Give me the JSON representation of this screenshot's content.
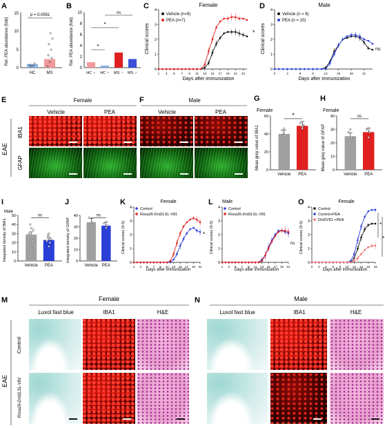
{
  "panels": {
    "A": {
      "letter": "A",
      "ylabel": "Rel. PEA abundance (fold)",
      "pval": "p = 0.0561",
      "cat1": "HC",
      "cat2": "MS",
      "ticks": [
        "0",
        "5",
        "10",
        "15"
      ]
    },
    "B": {
      "letter": "B",
      "ylabel": "Rel. PEA abundance (fold)",
      "ticks": [
        "0",
        "2",
        "4",
        "6",
        "8",
        "10"
      ],
      "cats": [
        "HC ♀",
        "HC ♂",
        "MS ♀",
        "MS ♂"
      ],
      "sig1": "*",
      "sig2": "*",
      "ns": "ns"
    },
    "C": {
      "letter": "C",
      "title": "Female",
      "ylabel": "Clinical scores",
      "xlabel": "Days after immunization",
      "legend": [
        "Vehicle (n=9)",
        "PEA (n=7)"
      ],
      "sig": "*",
      "yticks": [
        "0",
        "1",
        "2",
        "3",
        "4"
      ],
      "xticks": [
        "1",
        "3",
        "5",
        "7",
        "9",
        "11",
        "13",
        "15",
        "17",
        "19",
        "21",
        "23"
      ]
    },
    "D": {
      "letter": "D",
      "title": "Male",
      "ylabel": "Clinical scores",
      "xlabel": "Days after immunization",
      "legend": [
        "Vehicle (n = 8)",
        "PEA (n = 10)"
      ],
      "sig": "ns",
      "yticks": [
        "0",
        "1",
        "2",
        "3",
        "4"
      ],
      "xticks": [
        "0",
        "3",
        "6",
        "9",
        "12",
        "15",
        "18",
        "21"
      ]
    },
    "E": {
      "letter": "E",
      "title": "Female",
      "col1": "Vehicle",
      "col2": "PEA",
      "row1": "IBA1",
      "row2": "GFAP",
      "side": "EAE"
    },
    "F": {
      "letter": "F",
      "title": "Male",
      "col1": "Vehicle",
      "col2": "PEA"
    },
    "G": {
      "letter": "G",
      "title": "Female",
      "ylabel": "Mean grey value of IBA1",
      "cats": [
        "Vehicle",
        "PEA"
      ],
      "sig": "*",
      "yticks": [
        "0",
        "20",
        "40",
        "60"
      ]
    },
    "H": {
      "letter": "H",
      "title": "Female",
      "ylabel": "Mean grey value of GFAP",
      "cats": [
        "Vehicle",
        "PEA"
      ],
      "sig": "ns",
      "yticks": [
        "0",
        "10",
        "20",
        "30",
        "40"
      ]
    },
    "I": {
      "letter": "I",
      "title": "Male",
      "ylabel": "Integrated density of IBA1",
      "cats": [
        "Vehicle",
        "PEA"
      ],
      "sig": "ns",
      "yticks": [
        "0",
        "10",
        "20",
        "30",
        "40",
        "50"
      ]
    },
    "J": {
      "letter": "J",
      "title": "Male",
      "ylabel": "Integrated density of GFAP",
      "cats": [
        "Vehicle",
        "PEA"
      ],
      "sig": "ns",
      "yticks": [
        "0",
        "10",
        "20",
        "30",
        "40"
      ]
    },
    "K": {
      "letter": "K",
      "title": "Female",
      "ylabel": "Clinical scores (0-5)",
      "xlabel": "Days after immunization",
      "legend": [
        "Control",
        "Rosa26-Drd2LSL-V81"
      ],
      "sig": "*",
      "yticks": [
        "0",
        "1",
        "2",
        "3",
        "4"
      ],
      "xticks": [
        "1",
        "3",
        "5",
        "7",
        "9",
        "11",
        "13",
        "15",
        "17",
        "19",
        "21"
      ]
    },
    "L": {
      "letter": "L",
      "title": "Male",
      "ylabel": "Clinical scores (0-5)",
      "xlabel": "Days after immunization",
      "legend": [
        "Control",
        "Rosa26-Drd2LSL-V81"
      ],
      "sig": "ns",
      "yticks": [
        "0",
        "1",
        "2",
        "3",
        "4"
      ],
      "xticks": [
        "1",
        "3",
        "5",
        "7",
        "9",
        "11",
        "13",
        "15",
        "17",
        "19",
        "21"
      ]
    },
    "O": {
      "letter": "O",
      "title": "Female",
      "ylabel": "Clinical scores (0-5)",
      "xlabel": "Days after immunization",
      "legend": [
        "Control",
        "Control+PEA",
        "Drd2V81 +PEA"
      ],
      "sig1": "*",
      "sig2": "*",
      "yticks": [
        "0",
        "1",
        "2",
        "3",
        "4"
      ],
      "xticks": [
        "0",
        "2",
        "4",
        "6",
        "8",
        "10",
        "12",
        "14",
        "16",
        "18"
      ]
    },
    "M": {
      "letter": "M",
      "title": "Female",
      "cols": [
        "Luxol fast blue",
        "IBA1",
        "H&E"
      ],
      "row1": "Control",
      "row2": "Rosa26-Drd2LSL-V81",
      "side": "EAE"
    },
    "N": {
      "letter": "N",
      "title": "Male",
      "cols": [
        "Luxol fast blue",
        "IBA1",
        "H&E"
      ]
    }
  },
  "colors": {
    "black": "#111111",
    "red": "#e02020",
    "blue": "#2a3fd8",
    "gray": "#a0a0a0",
    "pink": "#f08a8a",
    "lightblue": "#8ab4e0",
    "salmon": "#f07070"
  },
  "chart_data": [
    {
      "type": "line",
      "id": "C",
      "title": "Female",
      "xlabel": "Days after immunization",
      "ylabel": "Clinical scores",
      "x": [
        1,
        2,
        3,
        4,
        5,
        6,
        7,
        8,
        9,
        10,
        11,
        12,
        13,
        14,
        15,
        16,
        17,
        18,
        19,
        20,
        21,
        22,
        23,
        24
      ],
      "series": [
        {
          "name": "Vehicle (n=9)",
          "values": [
            0,
            0,
            0,
            0,
            0,
            0,
            0,
            0,
            0,
            0,
            0,
            0,
            0.1,
            0.4,
            1.1,
            1.7,
            2.1,
            2.4,
            2.5,
            2.5,
            2.5,
            2.4,
            2.3,
            2.2
          ]
        },
        {
          "name": "PEA (n=7)",
          "values": [
            0,
            0,
            0,
            0,
            0,
            0,
            0,
            0,
            0,
            0,
            0,
            0,
            0.3,
            1.2,
            2.0,
            2.8,
            3.2,
            3.4,
            3.4,
            3.5,
            3.5,
            3.4,
            3.4,
            3.3
          ]
        }
      ],
      "ylim": [
        0,
        4
      ]
    },
    {
      "type": "line",
      "id": "D",
      "title": "Male",
      "xlabel": "Days after immunization",
      "ylabel": "Clinical scores",
      "x": [
        0,
        1,
        2,
        3,
        4,
        5,
        6,
        7,
        8,
        9,
        10,
        11,
        12,
        13,
        14,
        15,
        16,
        17,
        18,
        19,
        20,
        21,
        22,
        23
      ],
      "series": [
        {
          "name": "Vehicle (n = 8)",
          "values": [
            0,
            0,
            0,
            0,
            0,
            0,
            0,
            0,
            0,
            0,
            0,
            0,
            0.1,
            0.5,
            1.2,
            1.6,
            2.0,
            2.1,
            2.2,
            2.2,
            2.1,
            1.8,
            1.4,
            1.3
          ]
        },
        {
          "name": "PEA (n = 10)",
          "values": [
            0,
            0,
            0,
            0,
            0,
            0,
            0,
            0,
            0,
            0,
            0,
            0,
            0.0,
            0.4,
            1.0,
            1.6,
            2.0,
            2.2,
            2.3,
            2.3,
            2.2,
            2.0,
            1.9,
            1.7
          ]
        }
      ],
      "ylim": [
        0,
        4
      ]
    },
    {
      "type": "bar",
      "id": "A",
      "categories": [
        "HC",
        "MS"
      ],
      "values": [
        1.0,
        2.4
      ],
      "ylim": [
        0,
        15
      ]
    },
    {
      "type": "bar",
      "id": "B",
      "categories": [
        "HC ♀",
        "HC ♂",
        "MS ♀",
        "MS ♂"
      ],
      "values": [
        1.0,
        0.4,
        2.8,
        1.6
      ],
      "ylim": [
        0,
        10
      ]
    },
    {
      "type": "bar",
      "id": "G",
      "title": "Female",
      "categories": [
        "Vehicle",
        "PEA"
      ],
      "values": [
        40,
        49
      ],
      "ylim": [
        0,
        60
      ]
    },
    {
      "type": "bar",
      "id": "H",
      "title": "Female",
      "categories": [
        "Vehicle",
        "PEA"
      ],
      "values": [
        25,
        28
      ],
      "ylim": [
        0,
        40
      ]
    },
    {
      "type": "bar",
      "id": "I",
      "title": "Male",
      "categories": [
        "Vehicle",
        "PEA"
      ],
      "values": [
        29,
        23
      ],
      "ylim": [
        0,
        50
      ]
    },
    {
      "type": "bar",
      "id": "J",
      "title": "Male",
      "categories": [
        "Vehicle",
        "PEA"
      ],
      "values": [
        34,
        31
      ],
      "ylim": [
        0,
        40
      ]
    },
    {
      "type": "line",
      "id": "K",
      "title": "Female",
      "xlabel": "Days after immunization",
      "ylabel": "Clinical scores (0-5)",
      "x": [
        1,
        2,
        3,
        4,
        5,
        6,
        7,
        8,
        9,
        10,
        11,
        12,
        13,
        14,
        15,
        16,
        17,
        18,
        19,
        20,
        21
      ],
      "series": [
        {
          "name": "Control",
          "values": [
            0,
            0,
            0,
            0,
            0,
            0,
            0,
            0,
            0,
            0,
            0,
            0,
            0.2,
            0.6,
            1.2,
            1.7,
            2.1,
            2.4,
            2.5,
            2.3,
            2.2
          ]
        },
        {
          "name": "Rosa26-Drd2LSL-V81",
          "values": [
            0,
            0,
            0,
            0,
            0,
            0,
            0,
            0,
            0,
            0,
            0,
            0.1,
            0.6,
            1.4,
            2.1,
            2.6,
            2.9,
            3.1,
            3.2,
            3.1,
            2.9
          ]
        }
      ],
      "ylim": [
        0,
        4
      ]
    },
    {
      "type": "line",
      "id": "L",
      "title": "Male",
      "xlabel": "Days after immunization",
      "ylabel": "Clinical scores (0-5)",
      "x": [
        1,
        2,
        3,
        4,
        5,
        6,
        7,
        8,
        9,
        10,
        11,
        12,
        13,
        14,
        15,
        16,
        17,
        18,
        19,
        20,
        21
      ],
      "series": [
        {
          "name": "Control",
          "values": [
            0,
            0,
            0,
            0,
            0,
            0,
            0,
            0,
            0,
            0,
            0,
            0,
            0.2,
            0.5,
            1.1,
            1.6,
            2.0,
            2.3,
            2.3,
            2.2,
            2.1
          ]
        },
        {
          "name": "Rosa26-Drd2LSL-V81",
          "values": [
            0,
            0,
            0,
            0,
            0,
            0,
            0,
            0,
            0,
            0,
            0,
            0,
            0.1,
            0.5,
            1.0,
            1.5,
            1.9,
            2.2,
            2.3,
            2.3,
            2.2
          ]
        }
      ],
      "ylim": [
        0,
        4
      ]
    },
    {
      "type": "line",
      "id": "O",
      "title": "Female",
      "xlabel": "Days after immunization",
      "ylabel": "Clinical scores (0-5)",
      "x": [
        0,
        1,
        2,
        3,
        4,
        5,
        6,
        7,
        8,
        9,
        10,
        11,
        12,
        13,
        14,
        15,
        16,
        17,
        18
      ],
      "series": [
        {
          "name": "Control",
          "values": [
            0,
            0,
            0,
            0,
            0,
            0,
            0,
            0,
            0,
            0,
            0,
            0,
            0.3,
            1.0,
            1.8,
            2.4,
            2.7,
            2.8,
            2.8
          ]
        },
        {
          "name": "Control+PEA",
          "values": [
            0,
            0,
            0,
            0,
            0,
            0,
            0,
            0,
            0,
            0,
            0,
            0.1,
            0.6,
            1.6,
            2.6,
            3.3,
            3.7,
            3.8,
            3.8
          ]
        },
        {
          "name": "Drd2V81 +PEA",
          "values": [
            0,
            0,
            0,
            0,
            0,
            0,
            0,
            0,
            0,
            0,
            0,
            0,
            0.1,
            0.3,
            0.6,
            0.9,
            1.1,
            1.2,
            1.2
          ]
        }
      ],
      "ylim": [
        0,
        4
      ]
    }
  ]
}
